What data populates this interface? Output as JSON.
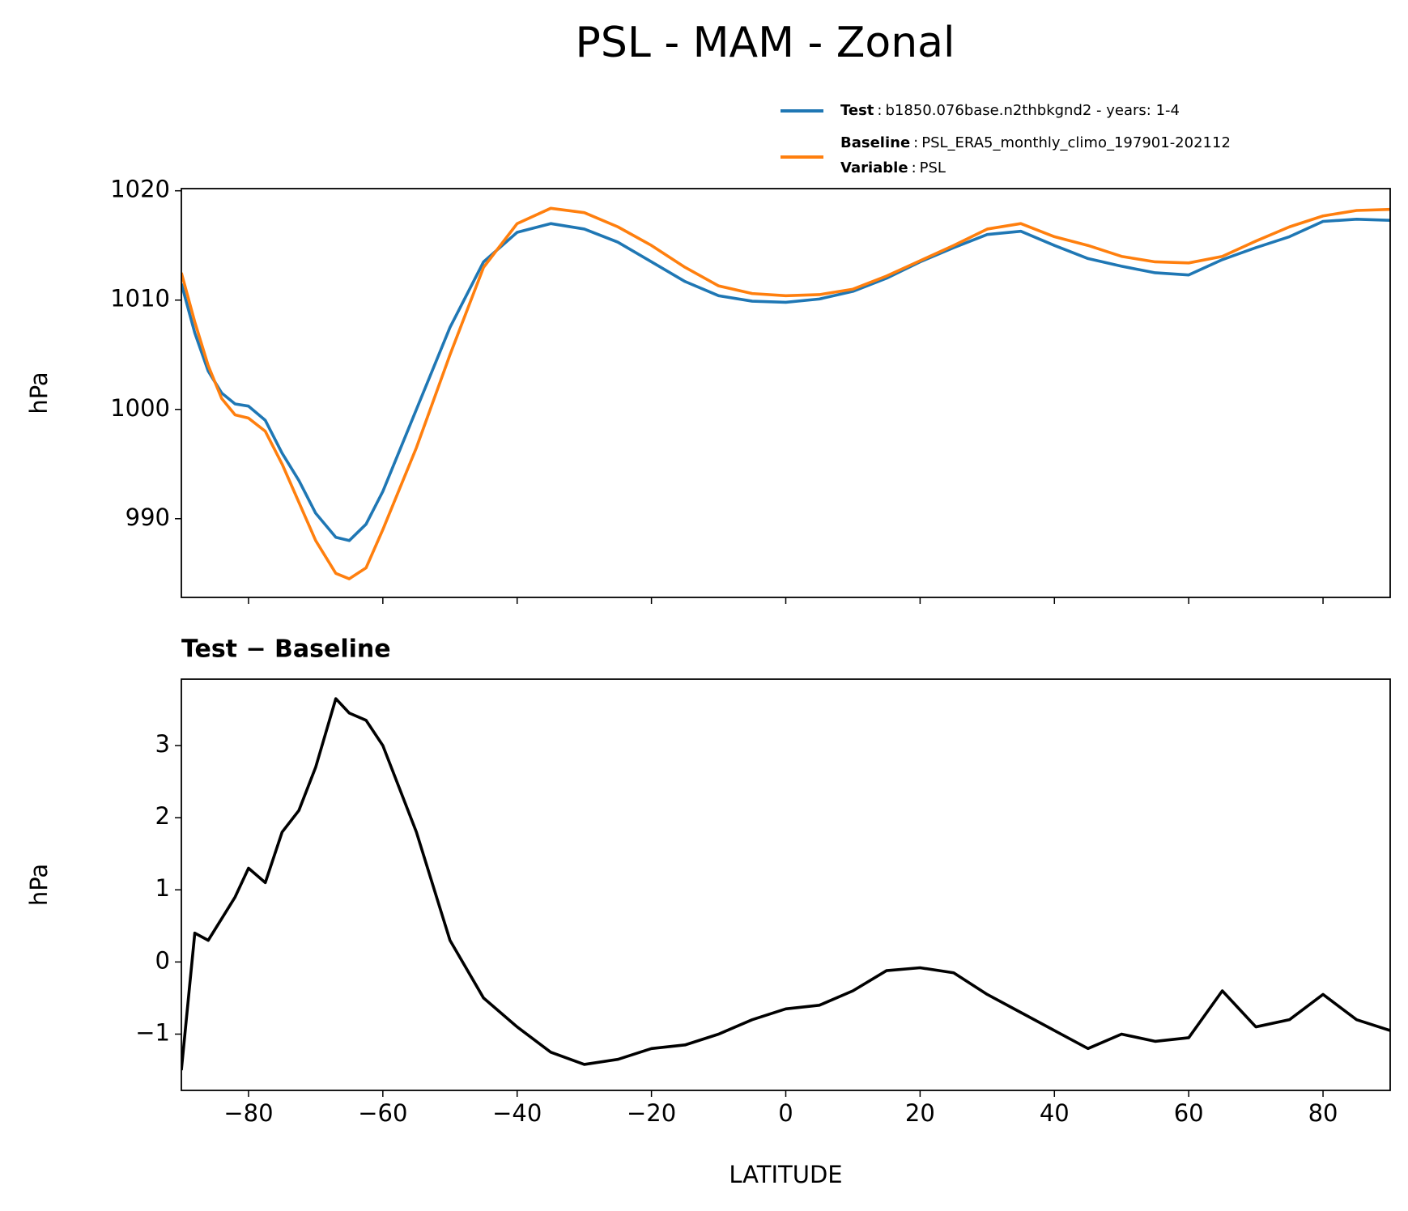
{
  "chart_data": [
    {
      "type": "line",
      "title": "PSL - MAM - Zonal",
      "ylabel": "hPa",
      "x": [
        -90,
        -88,
        -86,
        -84,
        -82,
        -80,
        -77.5,
        -75,
        -72.5,
        -70,
        -67,
        -65,
        -62.5,
        -60,
        -55,
        -50,
        -45,
        -40,
        -35,
        -30,
        -25,
        -20,
        -15,
        -10,
        -5,
        0,
        5,
        10,
        15,
        20,
        25,
        30,
        35,
        40,
        45,
        50,
        55,
        60,
        65,
        70,
        75,
        80,
        85,
        90
      ],
      "series": [
        {
          "name": "Test",
          "label": "b1850.076base.n2thbkgnd2 - years: 1-4",
          "color": "#1f77b4",
          "values": [
            1011.5,
            1007,
            1003.5,
            1001.5,
            1000.5,
            1000.3,
            999,
            996,
            993.5,
            990.5,
            988.3,
            988,
            989.5,
            992.5,
            1000,
            1007.5,
            1013.5,
            1016.2,
            1017,
            1016.5,
            1015.3,
            1013.5,
            1011.7,
            1010.4,
            1009.9,
            1009.8,
            1010.1,
            1010.8,
            1012,
            1013.5,
            1014.8,
            1016,
            1016.3,
            1015,
            1013.8,
            1013.1,
            1012.5,
            1012.3,
            1013.7,
            1014.8,
            1015.8,
            1017.2,
            1017.4,
            1017.3
          ]
        },
        {
          "name": "Baseline",
          "label": "PSL_ERA5_monthly_climo_197901-202112",
          "color": "#ff7f0e",
          "values": [
            1012.5,
            1008,
            1004,
            1001,
            999.5,
            999.2,
            998,
            995,
            991.5,
            988,
            985,
            984.5,
            985.5,
            989,
            996.5,
            1005,
            1013,
            1017,
            1018.4,
            1018,
            1016.7,
            1015,
            1013,
            1011.3,
            1010.6,
            1010.4,
            1010.5,
            1011,
            1012.2,
            1013.6,
            1015,
            1016.5,
            1017,
            1015.8,
            1015,
            1014,
            1013.5,
            1013.4,
            1014,
            1015.4,
            1016.7,
            1017.7,
            1018.2,
            1018.3
          ]
        }
      ],
      "legend_separator": ":",
      "legend_note": {
        "name": "Variable",
        "label": "PSL"
      },
      "xlim": [
        -90,
        90
      ],
      "xticks": [
        -80,
        -60,
        -40,
        -20,
        0,
        20,
        40,
        60,
        80
      ],
      "show_xtick_labels": false,
      "ylim": [
        982.8,
        1020.2
      ],
      "yticks": [
        990,
        1000,
        1010,
        1020
      ]
    },
    {
      "type": "line",
      "title": "Test − Baseline",
      "ylabel": "hPa",
      "xlabel": "LATITUDE",
      "x": [
        -90,
        -88,
        -86,
        -84,
        -82,
        -80,
        -77.5,
        -75,
        -72.5,
        -70,
        -67,
        -65,
        -62.5,
        -60,
        -55,
        -50,
        -45,
        -40,
        -35,
        -30,
        -25,
        -20,
        -15,
        -10,
        -5,
        0,
        5,
        10,
        15,
        20,
        25,
        30,
        35,
        40,
        45,
        50,
        55,
        60,
        65,
        70,
        75,
        80,
        85,
        90
      ],
      "series": [
        {
          "color": "#000000",
          "values": [
            -1.5,
            0.4,
            0.3,
            0.6,
            0.9,
            1.3,
            1.1,
            1.8,
            2.1,
            2.7,
            3.65,
            3.45,
            3.35,
            3.0,
            1.8,
            0.3,
            -0.5,
            -0.9,
            -1.25,
            -1.42,
            -1.35,
            -1.2,
            -1.15,
            -1.0,
            -0.8,
            -0.65,
            -0.6,
            -0.4,
            -0.12,
            -0.08,
            -0.15,
            -0.45,
            -0.7,
            -0.95,
            -1.2,
            -1.0,
            -1.1,
            -1.05,
            -0.4,
            -0.9,
            -0.8,
            -0.45,
            -0.8,
            -0.95
          ]
        }
      ],
      "xlim": [
        -90,
        90
      ],
      "xticks": [
        {
          "value": -80,
          "label": "−80"
        },
        {
          "value": -60,
          "label": "−60"
        },
        {
          "value": -40,
          "label": "−40"
        },
        {
          "value": -20,
          "label": "−20"
        },
        0,
        20,
        40,
        60,
        80
      ],
      "show_xtick_labels": true,
      "ylim": [
        -1.78,
        3.92
      ],
      "yticks": [
        {
          "value": -1,
          "label": "−1"
        },
        0,
        1,
        2,
        3
      ]
    }
  ]
}
